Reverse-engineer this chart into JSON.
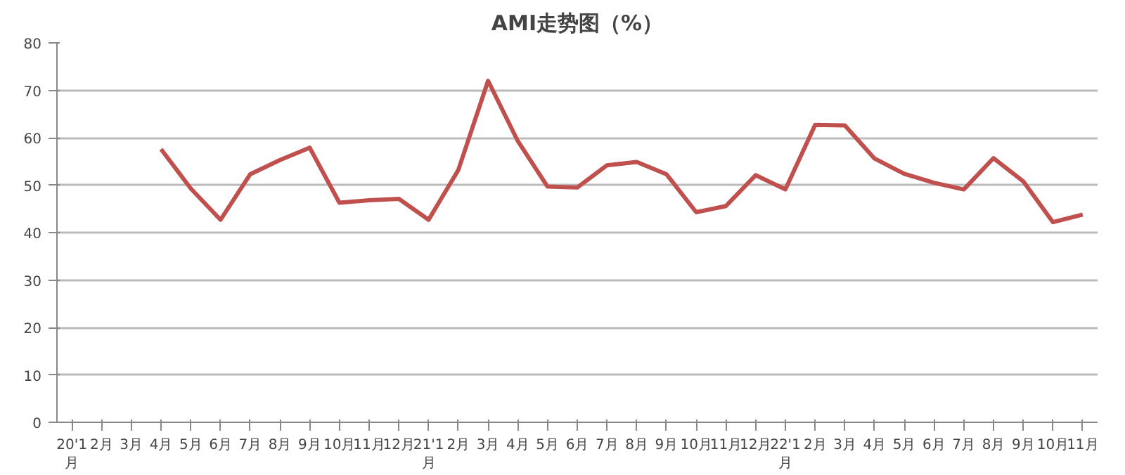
{
  "chart_data": {
    "type": "line",
    "title": "AMI走势图（%）",
    "categories": [
      "20'1月",
      "2月",
      "3月",
      "4月",
      "5月",
      "6月",
      "7月",
      "8月",
      "9月",
      "10月",
      "11月",
      "12月",
      "21'1月",
      "2月",
      "3月",
      "4月",
      "5月",
      "6月",
      "7月",
      "8月",
      "9月",
      "10月",
      "11月",
      "12月",
      "22'1月",
      "2月",
      "3月",
      "4月",
      "5月",
      "6月",
      "7月",
      "8月",
      "9月",
      "10月",
      "11月"
    ],
    "series": [
      {
        "color": "#c0504d",
        "values": [
          null,
          null,
          null,
          57.6,
          49.3,
          42.7,
          52.3,
          55.3,
          57.9,
          46.3,
          46.8,
          47.1,
          42.7,
          53.2,
          72.0,
          59.3,
          49.7,
          49.5,
          54.2,
          54.9,
          52.3,
          44.3,
          45.6,
          52.1,
          49.1,
          62.7,
          62.6,
          55.6,
          52.4,
          50.5,
          49.1,
          55.7,
          50.8,
          42.2,
          43.8
        ]
      }
    ],
    "ylim": [
      0,
      80
    ],
    "yticks": [
      0,
      10,
      20,
      30,
      40,
      50,
      60,
      70,
      80
    ],
    "grid": "y",
    "marker": "none",
    "line_style": "solid"
  }
}
